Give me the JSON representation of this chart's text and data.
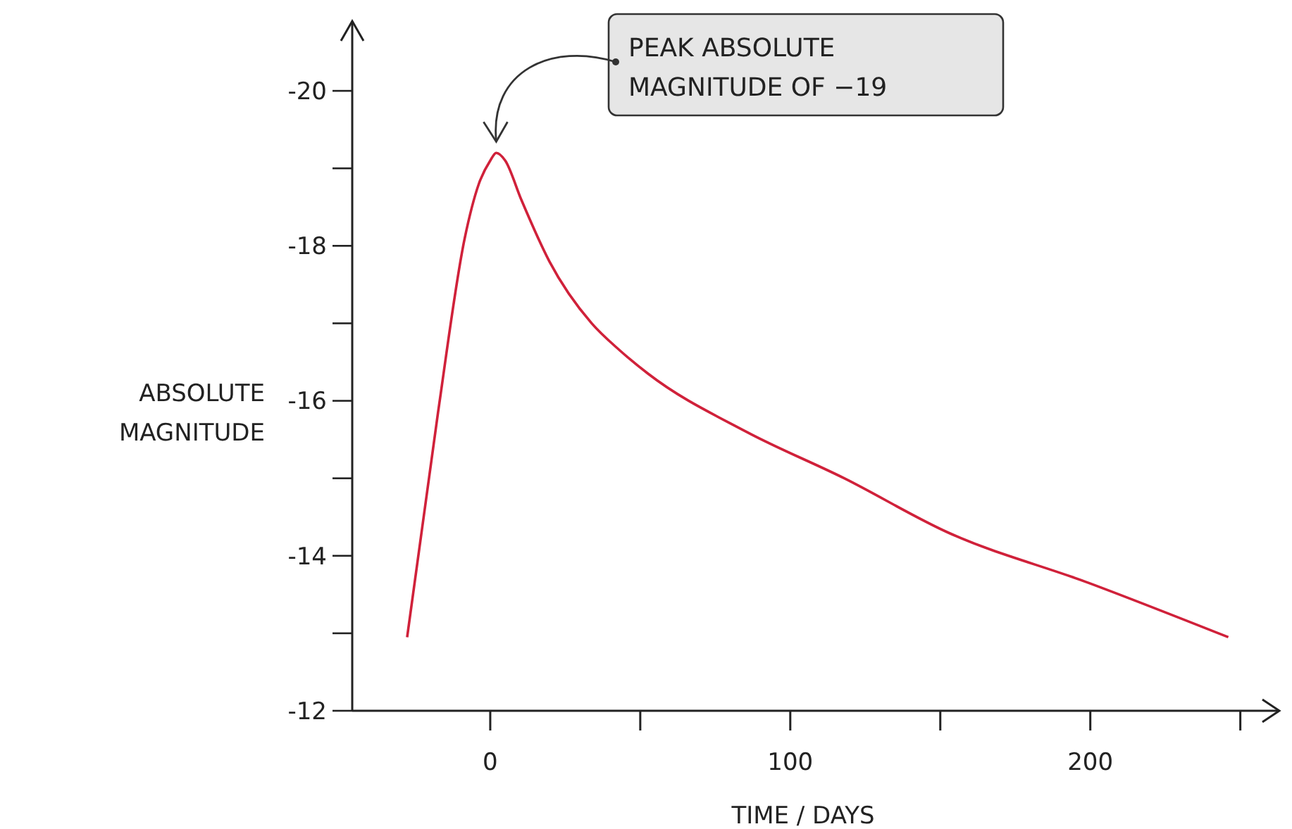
{
  "chart_data": {
    "type": "line",
    "xlabel": "TIME / DAYS",
    "ylabel": "ABSOLUTE MAGNITUDE",
    "xlim": [
      -46,
      263
    ],
    "xticks": [
      0,
      {
        "value": 50,
        "label": null
      },
      100,
      {
        "value": 150,
        "label": null
      },
      200,
      {
        "value": 250,
        "label": null
      }
    ],
    "ylim": [
      -12,
      -20.9
    ],
    "yticks": [
      -12,
      {
        "value": -13,
        "label": null
      },
      -14,
      {
        "value": -15,
        "label": null
      },
      -16,
      {
        "value": -17,
        "label": null
      },
      -18,
      {
        "value": -19,
        "label": null
      },
      -20
    ],
    "series": [
      {
        "color": "#d0213a",
        "x": [
          -27.7,
          -17.4,
          -8.5,
          -3.8,
          0,
          2,
          5,
          10.3,
          19.7,
          33.8,
          43.2,
          52.6,
          85.4,
          118,
          152.6,
          199.5,
          246
        ],
        "values": [
          -12.95,
          -15.85,
          -18.1,
          -18.8,
          -19.1,
          -19.2,
          -19.1,
          -18.6,
          -17.8,
          -17.0,
          -16.65,
          -16.35,
          -15.6,
          -15.0,
          -14.3,
          -13.65,
          -12.95
        ]
      }
    ],
    "annotations": [
      {
        "text": "PEAK ABSOLUTE MAGNITUDE OF −19",
        "x": 2,
        "y": -19.2
      }
    ],
    "grid": false,
    "marker": "none",
    "line_style": "solid"
  }
}
